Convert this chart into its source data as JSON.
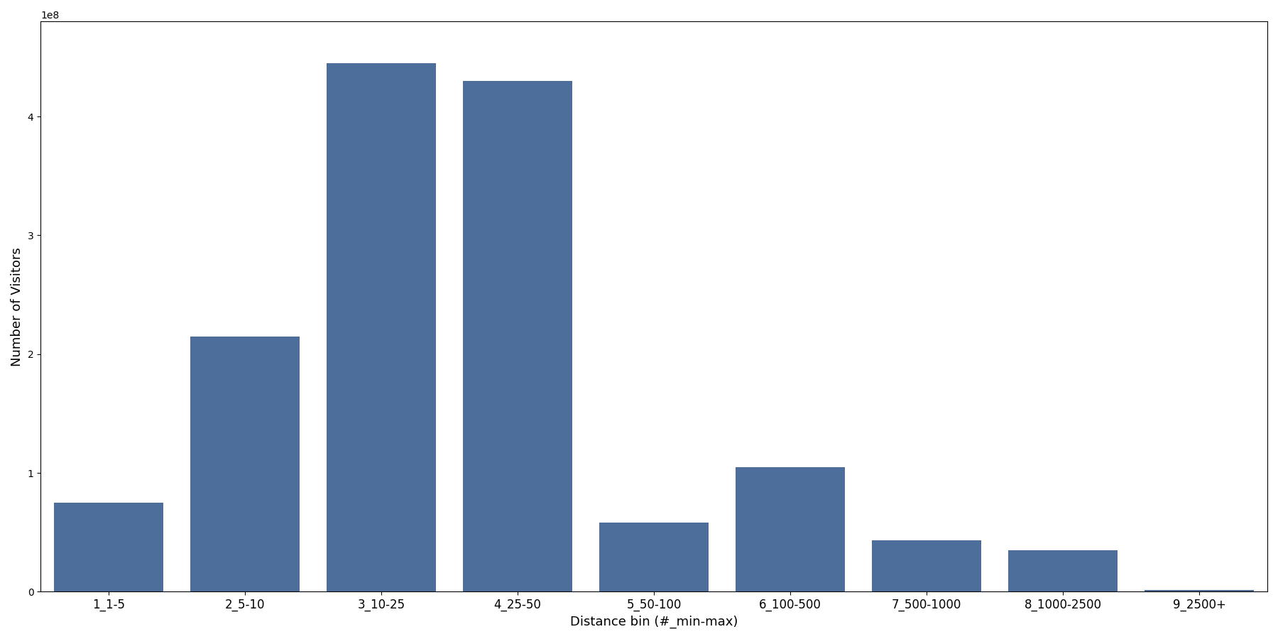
{
  "categories": [
    "1_1-5",
    "2_5-10",
    "3_10-25",
    "4_25-50",
    "5_50-100",
    "6_100-500",
    "7_500-1000",
    "8_1000-2500",
    "9_2500+"
  ],
  "values": [
    75000000,
    215000000,
    445000000,
    430000000,
    58000000,
    105000000,
    43000000,
    35000000,
    1500000
  ],
  "bar_color": "#4d6d9a",
  "xlabel": "Distance bin (#_min-max)",
  "ylabel": "Number of Visitors",
  "background_color": "#ffffff",
  "ylim": [
    0,
    480000000
  ]
}
